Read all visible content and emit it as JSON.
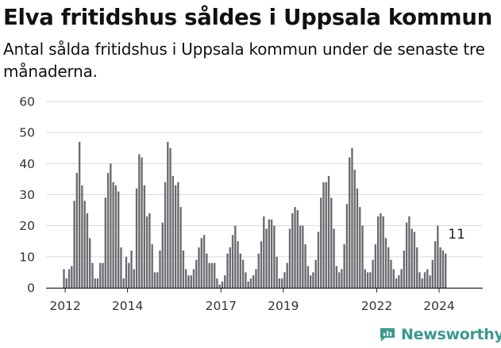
{
  "title": "Elva fritidshus såldes i Uppsala kommun",
  "subtitle": "Antal sålda fritidshus i Uppsala kommun under de senaste tre månaderna.",
  "brand": {
    "name": "Newsworthy",
    "logo_icon": "newsworthy-logo-icon"
  },
  "colors": {
    "bar": "#6b6a70",
    "highlight": "#2a9d8f",
    "grid": "#d9d9d9",
    "brand": "#3a9a8e"
  },
  "chart_data": {
    "type": "bar",
    "title": "",
    "xlabel": "",
    "ylabel": "",
    "ylim": [
      0,
      60
    ],
    "yticks": [
      0,
      10,
      20,
      30,
      40,
      50,
      60
    ],
    "xticks": [
      "2012",
      "2014",
      "2017",
      "2019",
      "2022",
      "2024"
    ],
    "xtick_months": [
      1,
      25,
      61,
      85,
      121,
      145
    ],
    "grid": true,
    "series": [
      {
        "values": [
          6,
          3,
          6,
          7,
          28,
          37,
          47,
          33,
          28,
          24,
          16,
          8,
          3,
          3,
          8,
          8,
          29,
          37,
          40,
          34,
          33,
          31,
          13,
          3,
          10,
          8,
          12,
          6,
          32,
          43,
          42,
          33,
          23,
          24,
          14,
          5,
          5,
          12,
          21,
          34,
          47,
          45,
          36,
          33,
          34,
          26,
          12,
          6,
          4,
          4,
          6,
          9,
          13,
          16,
          17,
          11,
          8,
          8,
          8,
          3,
          1,
          2,
          4,
          11,
          13,
          17,
          20,
          15,
          11,
          9,
          5,
          2,
          3,
          4,
          6,
          11,
          15,
          23,
          19,
          22,
          22,
          20,
          10,
          3,
          3,
          5,
          8,
          19,
          24,
          26,
          25,
          20,
          20,
          14,
          7,
          4,
          5,
          9,
          18,
          29,
          34,
          34,
          36,
          29,
          19,
          7,
          5,
          6,
          14,
          27,
          42,
          45,
          38,
          32,
          26,
          20,
          6,
          5,
          5,
          9,
          14,
          23,
          24,
          23,
          16,
          13,
          9,
          6,
          3,
          4,
          6,
          12,
          21,
          23,
          19,
          18,
          13,
          5,
          3,
          5,
          6,
          4,
          9,
          15,
          20,
          13,
          12,
          11
        ]
      }
    ],
    "highlight": {
      "index": 151,
      "value": 11,
      "label": "11"
    },
    "x_range_months": [
      0,
      152
    ]
  }
}
